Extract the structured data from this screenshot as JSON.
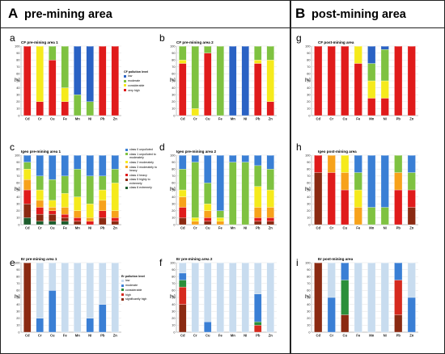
{
  "sections": [
    {
      "letter": "A",
      "title": "pre-mining area"
    },
    {
      "letter": "B",
      "title": "post-mining area"
    }
  ],
  "legends": {
    "cf": {
      "title": "CF pollution level",
      "items": [
        {
          "label": "low",
          "color": "#2a62c4"
        },
        {
          "label": "moderate",
          "color": "#7fc241"
        },
        {
          "label": "considerable",
          "color": "#f5ea1c"
        },
        {
          "label": "very high",
          "color": "#e01b1b"
        }
      ]
    },
    "igeo": {
      "title": "",
      "items": [
        {
          "label": "class 0 unpolluted",
          "color": "#3a7fd5"
        },
        {
          "label": "class 1 unpolluted to moderately",
          "color": "#7fc241"
        },
        {
          "label": "class 2 moderately",
          "color": "#f5ea1c"
        },
        {
          "label": "class 3 moderately to heavy",
          "color": "#f7a21b"
        },
        {
          "label": "class 4 heavy",
          "color": "#e01b1b"
        },
        {
          "label": "class 5 highly to extremely",
          "color": "#8b2a12"
        },
        {
          "label": "class 6 extremely",
          "color": "#1c5c2c"
        }
      ]
    },
    "er": {
      "title": "Er pollution level",
      "items": [
        {
          "label": "low",
          "color": "#c8dcef"
        },
        {
          "label": "moderate",
          "color": "#3a7fd5"
        },
        {
          "label": "considerable",
          "color": "#2b8f3a"
        },
        {
          "label": "high",
          "color": "#d62a1e"
        },
        {
          "label": "significantly high",
          "color": "#8b2a12"
        }
      ]
    }
  },
  "chart_data": [
    {
      "panel": "a",
      "title": "CF pre-mining area 1",
      "type": "bar",
      "stacked": true,
      "categories": [
        "Cd",
        "Cr",
        "Cu",
        "Fe",
        "Mn",
        "Ni",
        "Pb",
        "Zn"
      ],
      "ylabel": "[%]",
      "ylim": [
        0,
        100
      ],
      "series": [
        {
          "name": "low",
          "values": [
            0,
            0,
            0,
            0,
            70,
            80,
            0,
            0
          ]
        },
        {
          "name": "moderate",
          "values": [
            0,
            0,
            20,
            60,
            30,
            20,
            0,
            0
          ]
        },
        {
          "name": "considerable",
          "values": [
            0,
            80,
            0,
            20,
            0,
            0,
            0,
            0
          ]
        },
        {
          "name": "very high",
          "values": [
            100,
            20,
            80,
            20,
            0,
            0,
            100,
            100
          ]
        }
      ]
    },
    {
      "panel": "b",
      "title": "CF pre-mining area 2",
      "type": "bar",
      "stacked": true,
      "categories": [
        "Cd",
        "Cr",
        "Cu",
        "Fe",
        "Mn",
        "Ni",
        "Pb",
        "Zn"
      ],
      "ylabel": "[%]",
      "ylim": [
        0,
        100
      ],
      "series": [
        {
          "name": "low",
          "values": [
            0,
            0,
            0,
            0,
            100,
            100,
            0,
            0
          ]
        },
        {
          "name": "moderate",
          "values": [
            20,
            90,
            10,
            100,
            0,
            0,
            20,
            20
          ]
        },
        {
          "name": "considerable",
          "values": [
            5,
            10,
            0,
            0,
            0,
            0,
            5,
            60
          ]
        },
        {
          "name": "very high",
          "values": [
            75,
            0,
            90,
            0,
            0,
            0,
            75,
            20
          ]
        }
      ]
    },
    {
      "panel": "g",
      "title": "CF post-mining area",
      "type": "bar",
      "stacked": true,
      "categories": [
        "Cd",
        "Cr",
        "Cu",
        "Fe",
        "Mn",
        "Ni",
        "Pb",
        "Zn"
      ],
      "ylabel": "[%]",
      "ylim": [
        0,
        100
      ],
      "series": [
        {
          "name": "low",
          "values": [
            0,
            0,
            0,
            0,
            25,
            5,
            0,
            0
          ]
        },
        {
          "name": "moderate",
          "values": [
            0,
            0,
            0,
            0,
            25,
            45,
            0,
            0
          ]
        },
        {
          "name": "considerable",
          "values": [
            0,
            0,
            0,
            25,
            25,
            25,
            0,
            0
          ]
        },
        {
          "name": "very high",
          "values": [
            100,
            100,
            100,
            75,
            25,
            25,
            100,
            100
          ]
        }
      ]
    },
    {
      "panel": "c",
      "title": "Igeo pre-mining area 1",
      "type": "bar",
      "stacked": true,
      "categories": [
        "Cd",
        "Cr",
        "Cu",
        "Fe",
        "Mn",
        "Ni",
        "Pb",
        "Zn"
      ],
      "ylabel": "[%]",
      "ylim": [
        0,
        100
      ],
      "series": [
        {
          "name": "class 0 unpolluted",
          "values": [
            10,
            30,
            35,
            30,
            20,
            30,
            30,
            20
          ]
        },
        {
          "name": "class 1 unpolluted to moderately",
          "values": [
            10,
            20,
            30,
            25,
            40,
            40,
            20,
            20
          ]
        },
        {
          "name": "class 2 moderately",
          "values": [
            15,
            15,
            10,
            20,
            20,
            20,
            15,
            40
          ]
        },
        {
          "name": "class 3 moderately to heavy",
          "values": [
            15,
            10,
            5,
            10,
            10,
            5,
            15,
            10
          ]
        },
        {
          "name": "class 4 heavy",
          "values": [
            20,
            10,
            5,
            5,
            5,
            5,
            10,
            5
          ]
        },
        {
          "name": "class 5 highly to extremely",
          "values": [
            20,
            10,
            10,
            5,
            5,
            0,
            10,
            5
          ]
        },
        {
          "name": "class 6 extremely",
          "values": [
            10,
            5,
            5,
            5,
            0,
            0,
            0,
            0
          ]
        }
      ]
    },
    {
      "panel": "d",
      "title": "Igeo pre-mining area 2",
      "type": "bar",
      "stacked": true,
      "categories": [
        "Cd",
        "Cr",
        "Cu",
        "Fe",
        "Mn",
        "Ni",
        "Pb",
        "Zn"
      ],
      "ylabel": "[%]",
      "ylim": [
        0,
        100
      ],
      "series": [
        {
          "name": "class 0 unpolluted",
          "values": [
            20,
            10,
            40,
            80,
            10,
            10,
            15,
            20
          ]
        },
        {
          "name": "class 1 unpolluted to moderately",
          "values": [
            30,
            80,
            30,
            10,
            90,
            90,
            30,
            30
          ]
        },
        {
          "name": "class 2 moderately",
          "values": [
            10,
            5,
            10,
            5,
            0,
            0,
            30,
            25
          ]
        },
        {
          "name": "class 3 moderately to heavy",
          "values": [
            15,
            5,
            10,
            5,
            0,
            0,
            15,
            15
          ]
        },
        {
          "name": "class 4 heavy",
          "values": [
            15,
            0,
            5,
            0,
            0,
            0,
            5,
            5
          ]
        },
        {
          "name": "class 5 highly to extremely",
          "values": [
            10,
            0,
            5,
            0,
            0,
            0,
            5,
            5
          ]
        },
        {
          "name": "class 6 extremely",
          "values": [
            0,
            0,
            0,
            0,
            0,
            0,
            0,
            0
          ]
        }
      ]
    },
    {
      "panel": "h",
      "title": "Igeo post-mining area",
      "type": "bar",
      "stacked": true,
      "categories": [
        "Cd",
        "Cr",
        "Cu",
        "Fe",
        "Mn",
        "Ni",
        "Pb",
        "Zn"
      ],
      "ylabel": "[%]",
      "ylim": [
        0,
        100
      ],
      "series": [
        {
          "name": "class 0 unpolluted",
          "values": [
            0,
            0,
            0,
            25,
            75,
            75,
            0,
            25
          ]
        },
        {
          "name": "class 1 unpolluted to moderately",
          "values": [
            0,
            0,
            0,
            25,
            25,
            25,
            25,
            25
          ]
        },
        {
          "name": "class 2 moderately",
          "values": [
            0,
            0,
            25,
            25,
            0,
            0,
            0,
            0
          ]
        },
        {
          "name": "class 3 moderately to heavy",
          "values": [
            0,
            25,
            25,
            25,
            0,
            0,
            25,
            0
          ]
        },
        {
          "name": "class 4 heavy",
          "values": [
            25,
            75,
            50,
            0,
            0,
            0,
            50,
            25
          ]
        },
        {
          "name": "class 5 highly to extremely",
          "values": [
            75,
            0,
            0,
            0,
            0,
            0,
            0,
            25
          ]
        },
        {
          "name": "class 6 extremely",
          "values": [
            0,
            0,
            0,
            0,
            0,
            0,
            0,
            0
          ]
        }
      ]
    },
    {
      "panel": "e",
      "title": "Er pre-mining area 1",
      "type": "bar",
      "stacked": true,
      "categories": [
        "Cd",
        "Cr",
        "Cu",
        "Fe",
        "Mn",
        "Ni",
        "Pb",
        "Zn"
      ],
      "ylabel": "[%]",
      "ylim": [
        0,
        100
      ],
      "series": [
        {
          "name": "low",
          "values": [
            0,
            80,
            40,
            100,
            100,
            80,
            60,
            100
          ]
        },
        {
          "name": "moderate",
          "values": [
            0,
            20,
            60,
            0,
            0,
            20,
            40,
            0
          ]
        },
        {
          "name": "considerable",
          "values": [
            0,
            0,
            0,
            0,
            0,
            0,
            0,
            0
          ]
        },
        {
          "name": "high",
          "values": [
            0,
            0,
            0,
            0,
            0,
            0,
            0,
            0
          ]
        },
        {
          "name": "significantly high",
          "values": [
            100,
            0,
            0,
            0,
            0,
            0,
            0,
            0
          ]
        }
      ]
    },
    {
      "panel": "f",
      "title": "Er pre-mining area 2",
      "type": "bar",
      "stacked": true,
      "categories": [
        "Cd",
        "Cr",
        "Cu",
        "Fe",
        "Mn",
        "Ni",
        "Pb",
        "Zn"
      ],
      "ylabel": "[%]",
      "ylim": [
        0,
        100
      ],
      "series": [
        {
          "name": "low",
          "values": [
            15,
            100,
            85,
            100,
            100,
            100,
            45,
            100
          ]
        },
        {
          "name": "moderate",
          "values": [
            10,
            0,
            15,
            0,
            0,
            0,
            40,
            0
          ]
        },
        {
          "name": "considerable",
          "values": [
            10,
            0,
            0,
            0,
            0,
            0,
            5,
            0
          ]
        },
        {
          "name": "high",
          "values": [
            25,
            0,
            0,
            0,
            0,
            0,
            10,
            0
          ]
        },
        {
          "name": "significantly high",
          "values": [
            40,
            0,
            0,
            0,
            0,
            0,
            0,
            0
          ]
        }
      ]
    },
    {
      "panel": "i",
      "title": "Er post-mining area",
      "type": "bar",
      "stacked": true,
      "categories": [
        "Cd",
        "Cr",
        "Cu",
        "Fe",
        "Mn",
        "Ni",
        "Pb",
        "Zn"
      ],
      "ylabel": "[%]",
      "ylim": [
        0,
        100
      ],
      "series": [
        {
          "name": "low",
          "values": [
            0,
            50,
            0,
            100,
            100,
            100,
            0,
            50
          ]
        },
        {
          "name": "moderate",
          "values": [
            0,
            50,
            25,
            0,
            0,
            0,
            25,
            50
          ]
        },
        {
          "name": "considerable",
          "values": [
            0,
            0,
            50,
            0,
            0,
            0,
            0,
            0
          ]
        },
        {
          "name": "high",
          "values": [
            0,
            0,
            0,
            0,
            0,
            0,
            50,
            0
          ]
        },
        {
          "name": "significantly high",
          "values": [
            100,
            0,
            25,
            0,
            0,
            0,
            25,
            0
          ]
        }
      ]
    }
  ]
}
